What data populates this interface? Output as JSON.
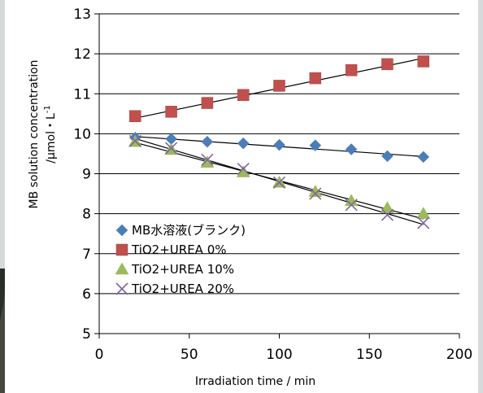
{
  "chart_data": {
    "type": "scatter",
    "xlabel": "Irradiation time / min",
    "ylabel_line1": "MB solution concentration",
    "ylabel_line2_base": "/μmol・L",
    "ylabel_line2_sup": "-1",
    "xlim": [
      0,
      200
    ],
    "ylim": [
      5,
      13
    ],
    "x_ticks": [
      0,
      50,
      100,
      150,
      200
    ],
    "y_ticks": [
      5,
      6,
      7,
      8,
      9,
      10,
      11,
      12,
      13
    ],
    "grid": "horizontal",
    "legend_position": "lower-left",
    "series": [
      {
        "name": "MB水溶液(ブランク)",
        "marker": "diamond",
        "color": "#4a7ebb",
        "x": [
          20,
          40,
          60,
          80,
          100,
          120,
          140,
          160,
          180
        ],
        "y": [
          9.9,
          9.87,
          9.8,
          9.76,
          9.72,
          9.71,
          9.61,
          9.44,
          9.42
        ],
        "trendline": [
          [
            20,
            9.93
          ],
          [
            180,
            9.43
          ]
        ]
      },
      {
        "name": "TiO2+UREA 0%",
        "marker": "square",
        "color": "#c0504d",
        "x": [
          20,
          40,
          60,
          80,
          100,
          120,
          140,
          160,
          180
        ],
        "y": [
          10.44,
          10.55,
          10.77,
          10.97,
          11.2,
          11.39,
          11.59,
          11.74,
          11.81
        ],
        "trendline": [
          [
            20,
            10.39
          ],
          [
            180,
            11.89
          ]
        ]
      },
      {
        "name": "TiO2+UREA 10%",
        "marker": "triangle",
        "color": "#9bbb59",
        "x": [
          20,
          40,
          60,
          80,
          100,
          120,
          140,
          160,
          180
        ],
        "y": [
          9.8,
          9.6,
          9.28,
          9.04,
          8.78,
          8.55,
          8.32,
          8.14,
          8.0
        ],
        "trendline": [
          [
            20,
            9.78
          ],
          [
            180,
            7.87
          ]
        ]
      },
      {
        "name": "TiO2+UREA 20%",
        "marker": "x",
        "color": "#8064a2",
        "x": [
          20,
          40,
          60,
          80,
          100,
          120,
          140,
          160,
          180
        ],
        "y": [
          9.82,
          9.64,
          9.35,
          9.12,
          8.78,
          8.5,
          8.22,
          7.97,
          7.77
        ],
        "trendline": [
          [
            20,
            9.88
          ],
          [
            180,
            7.73
          ]
        ]
      }
    ]
  }
}
